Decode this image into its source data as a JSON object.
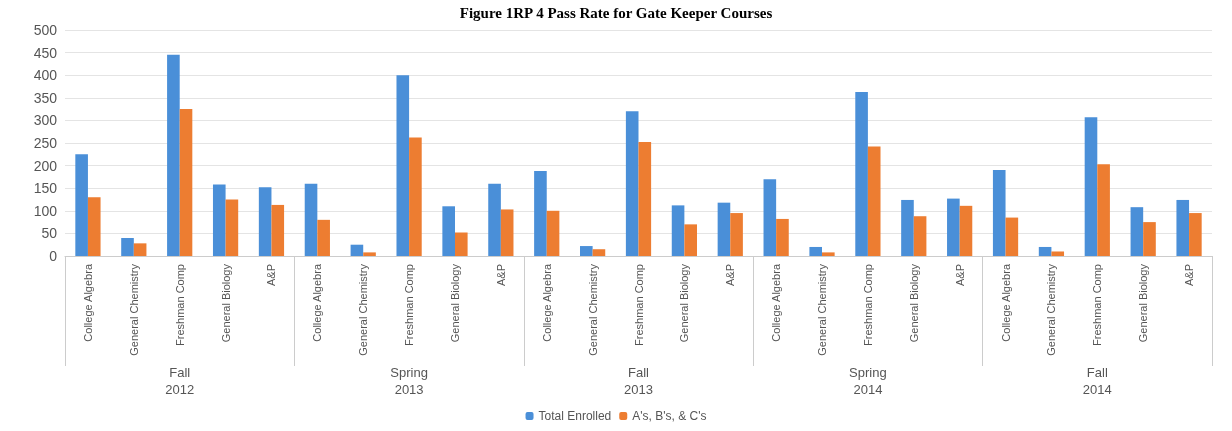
{
  "chart_data": {
    "type": "bar",
    "title": "Figure 1RP 4 Pass Rate for Gate Keeper Courses",
    "categories": [
      "College Algebra",
      "General Chemistry",
      "Freshman Comp",
      "General Biology",
      "A&P",
      "College Algebra",
      "General Chemistry",
      "Freshman Comp",
      "General Biology",
      "A&P",
      "College Algebra",
      "General Chemistry",
      "Freshman Comp",
      "General Biology",
      "A&P",
      "College Algebra",
      "General Chemistry",
      "Freshman Comp",
      "General Biology",
      "A&P",
      "College Algebra",
      "General Chemistry",
      "Freshman Comp",
      "General Biology",
      "A&P"
    ],
    "series": [
      {
        "name": "Total Enrolled",
        "color": "#4a8fd8",
        "values": [
          225,
          40,
          445,
          158,
          152,
          160,
          25,
          400,
          110,
          160,
          188,
          22,
          320,
          112,
          118,
          170,
          20,
          363,
          124,
          127,
          190,
          20,
          307,
          108,
          124
        ]
      },
      {
        "name": "A's, B's, & C's",
        "color": "#ed7d31",
        "values": [
          130,
          28,
          325,
          125,
          113,
          80,
          8,
          262,
          52,
          103,
          100,
          15,
          252,
          70,
          95,
          82,
          8,
          242,
          88,
          111,
          85,
          10,
          203,
          75,
          95
        ]
      }
    ],
    "annotations": [
      "Fall\n2012",
      "Spring\n2013",
      "Fall\n2013",
      "Spring\n2014",
      "Fall\n2014"
    ],
    "ylim": [
      0,
      500
    ],
    "yticks": [
      0,
      50,
      100,
      150,
      200,
      250,
      300,
      350,
      400,
      450,
      500
    ],
    "grid": "y",
    "legend": "bottom"
  }
}
